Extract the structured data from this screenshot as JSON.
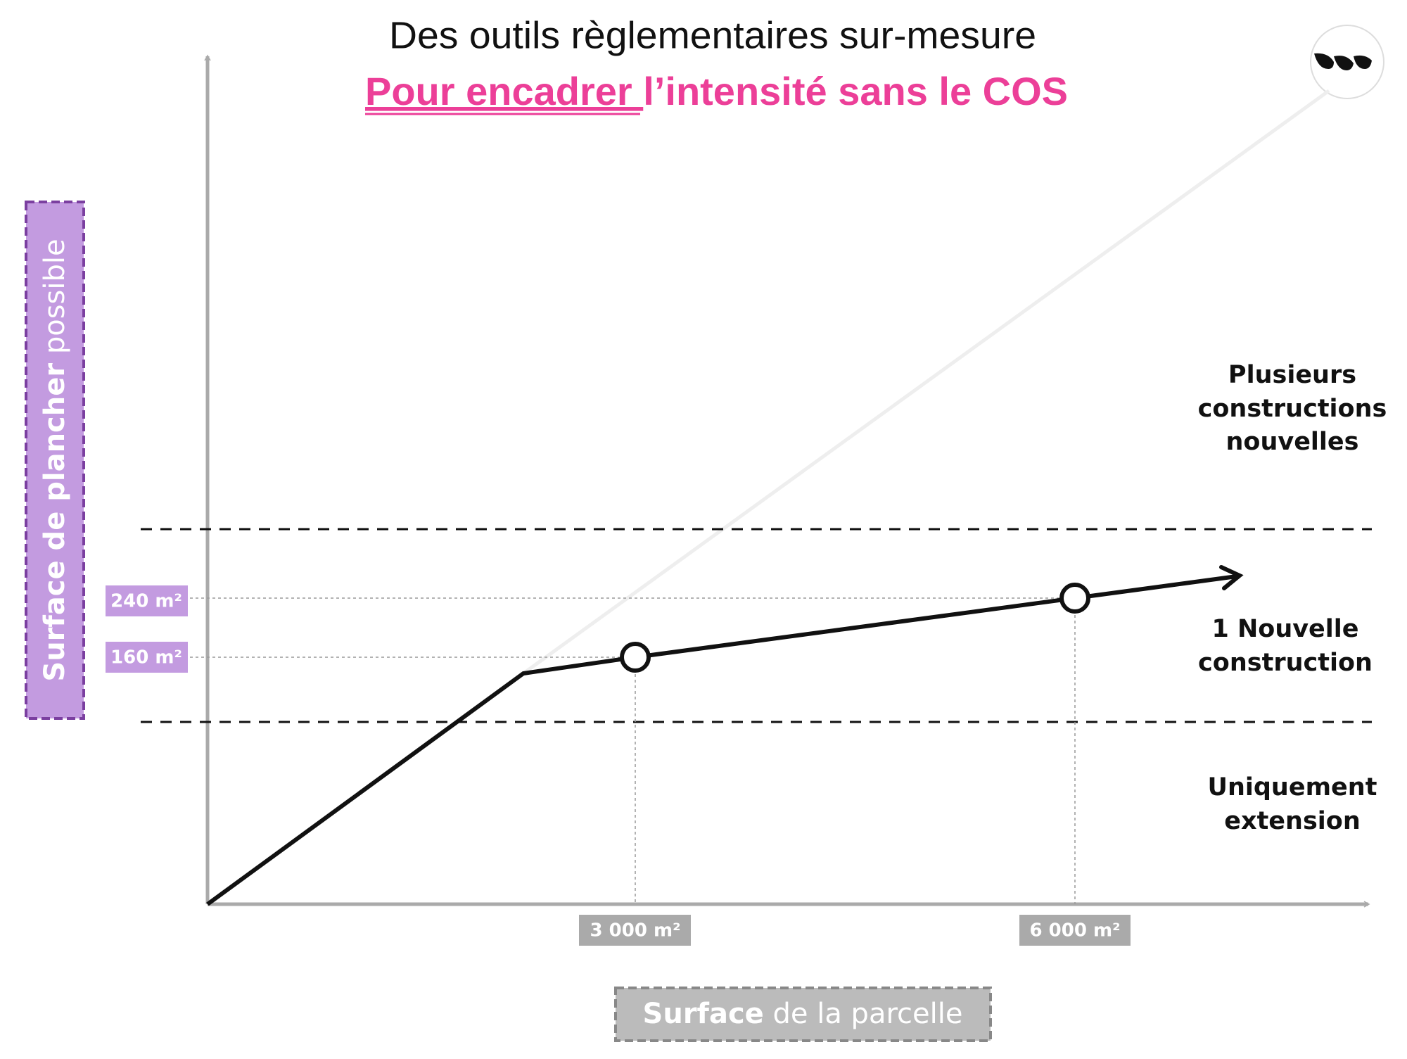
{
  "header": {
    "title": "Des outils règlementaires sur-mesure",
    "subtitle_underlined": "Pour encadrer ",
    "subtitle_rest": "l’intensité sans le COS"
  },
  "y_axis": {
    "label_bold": "Surface de plancher",
    "label_normal": "possible",
    "markers": [
      "240 m²",
      "160 m²"
    ]
  },
  "x_axis": {
    "label_bold": "Surface",
    "label_normal": "de la parcelle",
    "markers": [
      "3 000 m²",
      "6 000 m²"
    ]
  },
  "zones": [
    {
      "lines": [
        "Plusieurs",
        "constructions",
        "nouvelles"
      ]
    },
    {
      "lines": [
        "1 Nouvelle",
        "construction"
      ]
    },
    {
      "lines": [
        "Uniquement",
        "extension"
      ]
    }
  ]
}
